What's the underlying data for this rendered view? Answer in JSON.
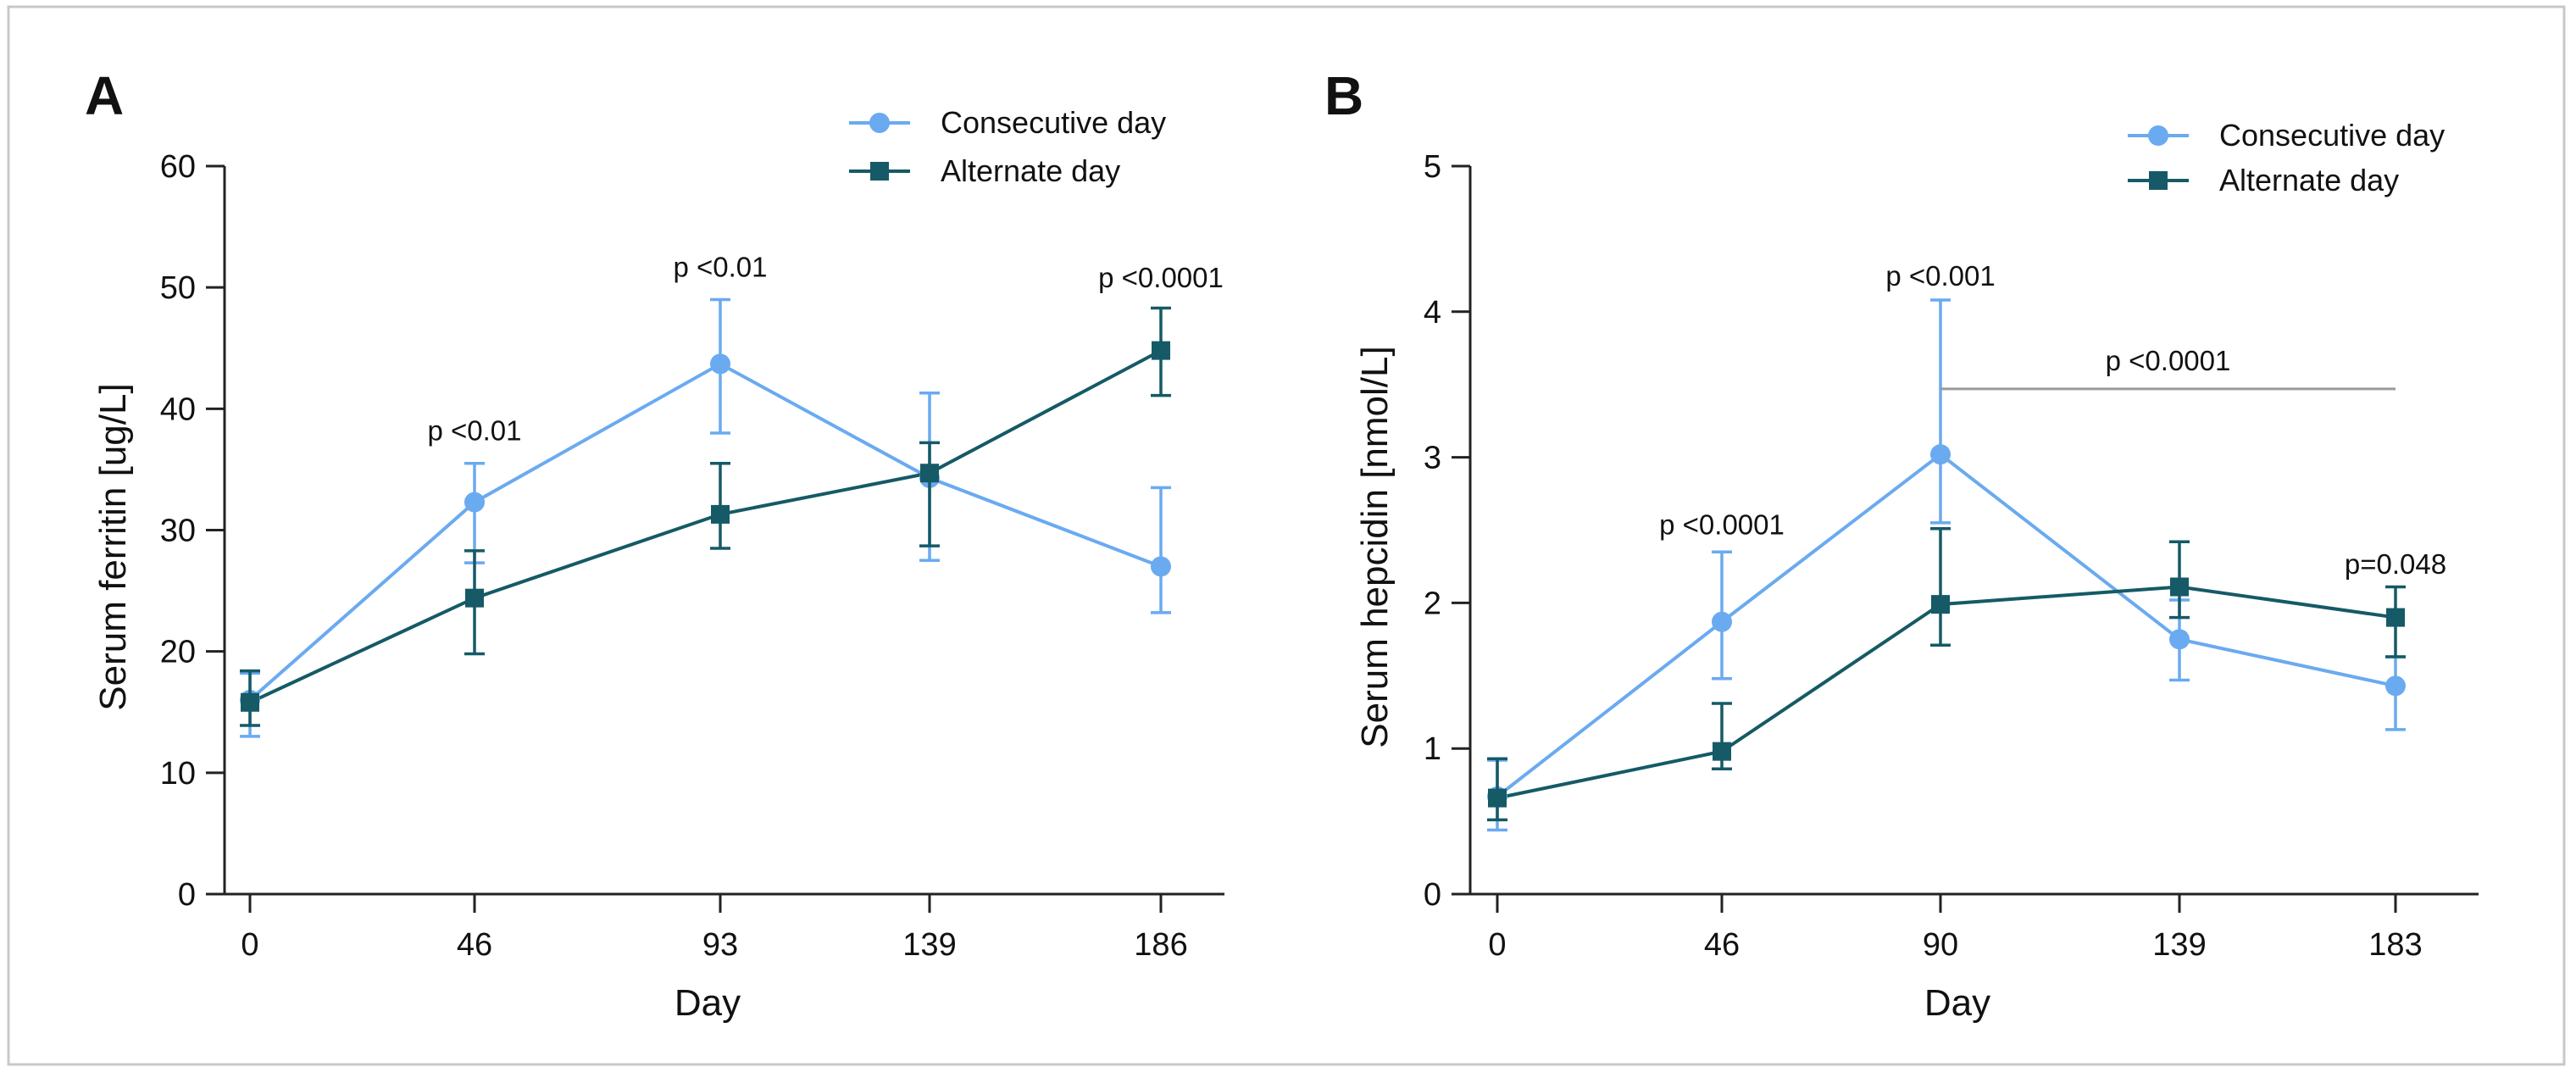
{
  "chart_data": [
    {
      "type": "line",
      "panel_label": "A",
      "x": [
        0,
        46,
        93,
        139,
        186
      ],
      "xlabel": "Day",
      "ylabel": "Serum ferritin [ug/L]",
      "ylim": [
        0,
        60
      ],
      "yticks": [
        0,
        10,
        20,
        30,
        40,
        50,
        60
      ],
      "legend_position": "top-right",
      "grid": false,
      "series": [
        {
          "name": "Consecutive day",
          "marker": "circle",
          "color": "#6aaaf0",
          "values": [
            16.0,
            32.3,
            43.7,
            34.3,
            27.0
          ],
          "error_low": [
            13.0,
            27.3,
            38.0,
            27.5,
            23.2
          ],
          "error_high": [
            18.2,
            35.5,
            49.0,
            41.3,
            33.5
          ]
        },
        {
          "name": "Alternate day",
          "marker": "square",
          "color": "#155a66",
          "values": [
            15.8,
            24.4,
            31.3,
            34.7,
            44.8
          ],
          "error_low": [
            13.9,
            19.8,
            28.5,
            28.7,
            41.1
          ],
          "error_high": [
            18.4,
            28.3,
            35.5,
            37.2,
            48.3
          ]
        }
      ],
      "annotations": [
        {
          "text": "p <0.01",
          "x": 46,
          "y": 37.4
        },
        {
          "text": "p <0.01",
          "x": 93,
          "y": 50.9
        },
        {
          "text": "p <0.0001",
          "x": 186,
          "y": 50.0
        }
      ]
    },
    {
      "type": "line",
      "panel_label": "B",
      "x": [
        0,
        46,
        90,
        139,
        183
      ],
      "xlabel": "Day",
      "ylabel": "Serum hepcidin [nmol/L]",
      "ylim": [
        0,
        5
      ],
      "yticks": [
        0,
        1,
        2,
        3,
        4,
        5
      ],
      "legend_position": "top-right",
      "grid": false,
      "series": [
        {
          "name": "Consecutive day",
          "marker": "circle",
          "color": "#6aaaf0",
          "values": [
            0.67,
            1.87,
            3.02,
            1.75,
            1.43
          ],
          "error_low": [
            0.44,
            1.48,
            2.55,
            1.47,
            1.13
          ],
          "error_high": [
            0.92,
            2.35,
            4.08,
            2.02,
            1.63
          ]
        },
        {
          "name": "Alternate day",
          "marker": "square",
          "color": "#155a66",
          "values": [
            0.66,
            0.98,
            1.99,
            2.11,
            1.9
          ],
          "error_low": [
            0.51,
            0.86,
            1.71,
            1.9,
            1.63
          ],
          "error_high": [
            0.93,
            1.31,
            2.51,
            2.42,
            2.11
          ]
        }
      ],
      "annotations": [
        {
          "text": "p <0.0001",
          "x": 46,
          "y": 2.47
        },
        {
          "text": "p <0.001",
          "x": 90,
          "y": 4.18
        },
        {
          "text": "p <0.0001",
          "x_from": 90,
          "x_to": 183,
          "y": 3.47,
          "bracket": true
        },
        {
          "text": "p=0.048",
          "x": 183,
          "y": 2.2
        }
      ]
    }
  ]
}
